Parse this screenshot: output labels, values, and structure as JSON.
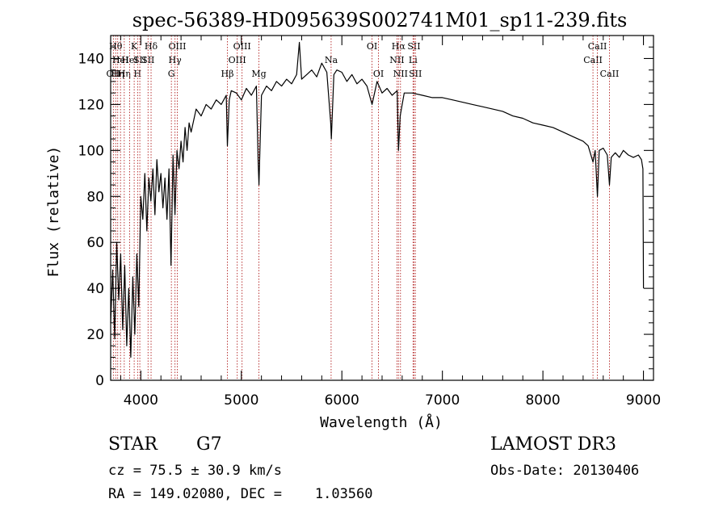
{
  "chart_data": {
    "type": "line",
    "title": "spec-56389-HD095639S002741M01_sp11-239.fits",
    "xlabel": "Wavelength (Å)",
    "ylabel": "Flux (relative)",
    "xlim": [
      3700,
      9100
    ],
    "ylim": [
      0,
      150
    ],
    "x_ticks": [
      4000,
      5000,
      6000,
      7000,
      8000,
      9000
    ],
    "x_tick_labels": [
      "4000",
      "5000",
      "6000",
      "7000",
      "8000",
      "9000"
    ],
    "y_ticks": [
      0,
      20,
      40,
      60,
      80,
      100,
      120,
      140
    ],
    "y_tick_labels": [
      "0",
      "20",
      "40",
      "60",
      "80",
      "100",
      "120",
      "140"
    ],
    "grid": false,
    "line_color": "#000000",
    "marker_color": "#b22222",
    "series": [
      {
        "x": [
          3700,
          3720,
          3740,
          3760,
          3780,
          3800,
          3820,
          3840,
          3860,
          3880,
          3900,
          3920,
          3940,
          3960,
          3980,
          4000,
          4020,
          4040,
          4060,
          4080,
          4100,
          4120,
          4140,
          4160,
          4180,
          4200,
          4220,
          4240,
          4260,
          4280,
          4300,
          4320,
          4340,
          4360,
          4380,
          4400,
          4420,
          4440,
          4460,
          4480,
          4500,
          4550,
          4600,
          4650,
          4700,
          4750,
          4800,
          4850,
          4861,
          4880,
          4900,
          4950,
          5000,
          5050,
          5100,
          5150,
          5167,
          5175,
          5183,
          5200,
          5250,
          5300,
          5350,
          5400,
          5450,
          5500,
          5550,
          5577,
          5600,
          5650,
          5700,
          5750,
          5800,
          5850,
          5889,
          5895,
          5920,
          5950,
          6000,
          6050,
          6100,
          6150,
          6200,
          6250,
          6300,
          6350,
          6400,
          6450,
          6500,
          6550,
          6563,
          6580,
          6620,
          6700,
          6800,
          6900,
          7000,
          7100,
          7200,
          7300,
          7400,
          7500,
          7600,
          7700,
          7800,
          7900,
          8000,
          8100,
          8200,
          8300,
          8400,
          8450,
          8498,
          8520,
          8542,
          8560,
          8600,
          8640,
          8662,
          8680,
          8720,
          8760,
          8800,
          8850,
          8900,
          8950,
          8980,
          8995,
          9000
        ],
        "y": [
          25,
          48,
          18,
          60,
          35,
          55,
          22,
          50,
          15,
          40,
          10,
          45,
          20,
          55,
          32,
          80,
          70,
          90,
          65,
          88,
          78,
          92,
          72,
          96,
          82,
          90,
          75,
          88,
          70,
          92,
          50,
          98,
          72,
          100,
          92,
          104,
          95,
          110,
          100,
          112,
          108,
          118,
          115,
          120,
          118,
          122,
          120,
          124,
          102,
          122,
          126,
          125,
          122,
          127,
          124,
          128,
          95,
          85,
          98,
          124,
          128,
          126,
          130,
          128,
          131,
          129,
          133,
          147,
          131,
          133,
          135,
          132,
          138,
          134,
          112,
          105,
          133,
          135,
          134,
          130,
          133,
          129,
          131,
          128,
          120,
          130,
          125,
          127,
          124,
          126,
          100,
          115,
          125,
          125,
          124,
          123,
          123,
          122,
          121,
          120,
          119,
          118,
          117,
          115,
          114,
          112,
          111,
          110,
          108,
          106,
          104,
          102,
          95,
          100,
          80,
          100,
          101,
          98,
          85,
          97,
          99,
          97,
          100,
          98,
          97,
          98,
          96,
          92,
          40
        ]
      }
    ],
    "line_markers": [
      {
        "x": 3727,
        "label": "OII",
        "row": 3
      },
      {
        "x": 3750,
        "label": "Hθ",
        "row": 1
      },
      {
        "x": 3770,
        "label": "Hη",
        "row": 3
      },
      {
        "x": 3798,
        "label": "HeI",
        "row": 2
      },
      {
        "x": 3835,
        "label": "Hη",
        "row": 3
      },
      {
        "x": 3889,
        "label": "HeI",
        "row": 2
      },
      {
        "x": 3934,
        "label": "K",
        "row": 1
      },
      {
        "x": 3968,
        "label": "H",
        "row": 3
      },
      {
        "x": 3990,
        "label": "SII",
        "row": 2
      },
      {
        "x": 4102,
        "label": "Hδ",
        "row": 1
      },
      {
        "x": 4072,
        "label": "SII",
        "row": 2
      },
      {
        "x": 4304,
        "label": "G",
        "row": 3
      },
      {
        "x": 4340,
        "label": "Hγ",
        "row": 2
      },
      {
        "x": 4363,
        "label": "OIII",
        "row": 1
      },
      {
        "x": 4861,
        "label": "Hβ",
        "row": 3
      },
      {
        "x": 4959,
        "label": "OIII",
        "row": 2
      },
      {
        "x": 5007,
        "label": "OIII",
        "row": 1
      },
      {
        "x": 5175,
        "label": "Mg",
        "row": 3
      },
      {
        "x": 5893,
        "label": "Na",
        "row": 2
      },
      {
        "x": 6300,
        "label": "OI",
        "row": 1
      },
      {
        "x": 6364,
        "label": "OI",
        "row": 3
      },
      {
        "x": 6548,
        "label": "NII",
        "row": 2
      },
      {
        "x": 6563,
        "label": "Hα",
        "row": 1
      },
      {
        "x": 6583,
        "label": "NII",
        "row": 3
      },
      {
        "x": 6708,
        "label": "Li",
        "row": 2
      },
      {
        "x": 6717,
        "label": "SII",
        "row": 1
      },
      {
        "x": 6731,
        "label": "SII",
        "row": 3
      },
      {
        "x": 8498,
        "label": "CaII",
        "row": 2
      },
      {
        "x": 8542,
        "label": "CaII",
        "row": 1
      },
      {
        "x": 8662,
        "label": "CaII",
        "row": 3
      }
    ]
  },
  "info": {
    "object_class": "STAR",
    "subclass": "G7",
    "survey": "LAMOST DR3",
    "redshift": "cz = 75.5 ± 30.9 km/s",
    "obs_date": "Obs-Date: 20130406",
    "coords": "RA = 149.02080, DEC =    1.03560"
  }
}
